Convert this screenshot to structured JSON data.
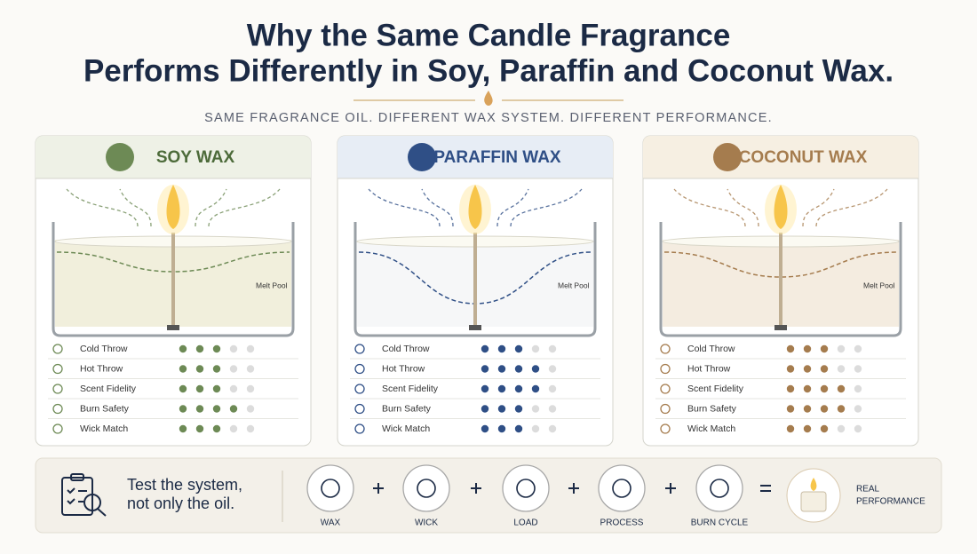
{
  "header": {
    "title_line1": "Why the Same Candle Fragrance",
    "title_line2": "Performs Differently in Soy, Paraffin and Coconut Wax.",
    "subtitle": "SAME FRAGRANCE OIL. DIFFERENT WAX SYSTEM. DIFFERENT PERFORMANCE."
  },
  "max_rating": 5,
  "panels": [
    {
      "title": "SOY WAX",
      "color": "#6d8a55",
      "melt_pool_label": "Melt Pool",
      "metrics": [
        {
          "label": "Cold Throw",
          "rating": 3
        },
        {
          "label": "Hot Throw",
          "rating": 3
        },
        {
          "label": "Scent Fidelity",
          "rating": 3
        },
        {
          "label": "Burn Safety",
          "rating": 4
        },
        {
          "label": "Wick Match",
          "rating": 3
        }
      ]
    },
    {
      "title": "PARAFFIN WAX",
      "color": "#2f4f86",
      "melt_pool_label": "Melt Pool",
      "metrics": [
        {
          "label": "Cold Throw",
          "rating": 3
        },
        {
          "label": "Hot Throw",
          "rating": 4
        },
        {
          "label": "Scent Fidelity",
          "rating": 4
        },
        {
          "label": "Burn Safety",
          "rating": 3
        },
        {
          "label": "Wick Match",
          "rating": 3
        }
      ]
    },
    {
      "title": "COCONUT WAX",
      "color": "#a57c4e",
      "melt_pool_label": "Melt Pool",
      "metrics": [
        {
          "label": "Cold Throw",
          "rating": 3
        },
        {
          "label": "Hot Throw",
          "rating": 3
        },
        {
          "label": "Scent Fidelity",
          "rating": 4
        },
        {
          "label": "Burn Safety",
          "rating": 4
        },
        {
          "label": "Wick Match",
          "rating": 3
        }
      ]
    }
  ],
  "footer": {
    "tagline_line1": "Test the system,",
    "tagline_line2": "not only the oil.",
    "steps": [
      "WAX",
      "WICK",
      "LOAD",
      "PROCESS",
      "BURN CYCLE"
    ],
    "result_line1": "REAL",
    "result_line2": "PERFORMANCE"
  }
}
